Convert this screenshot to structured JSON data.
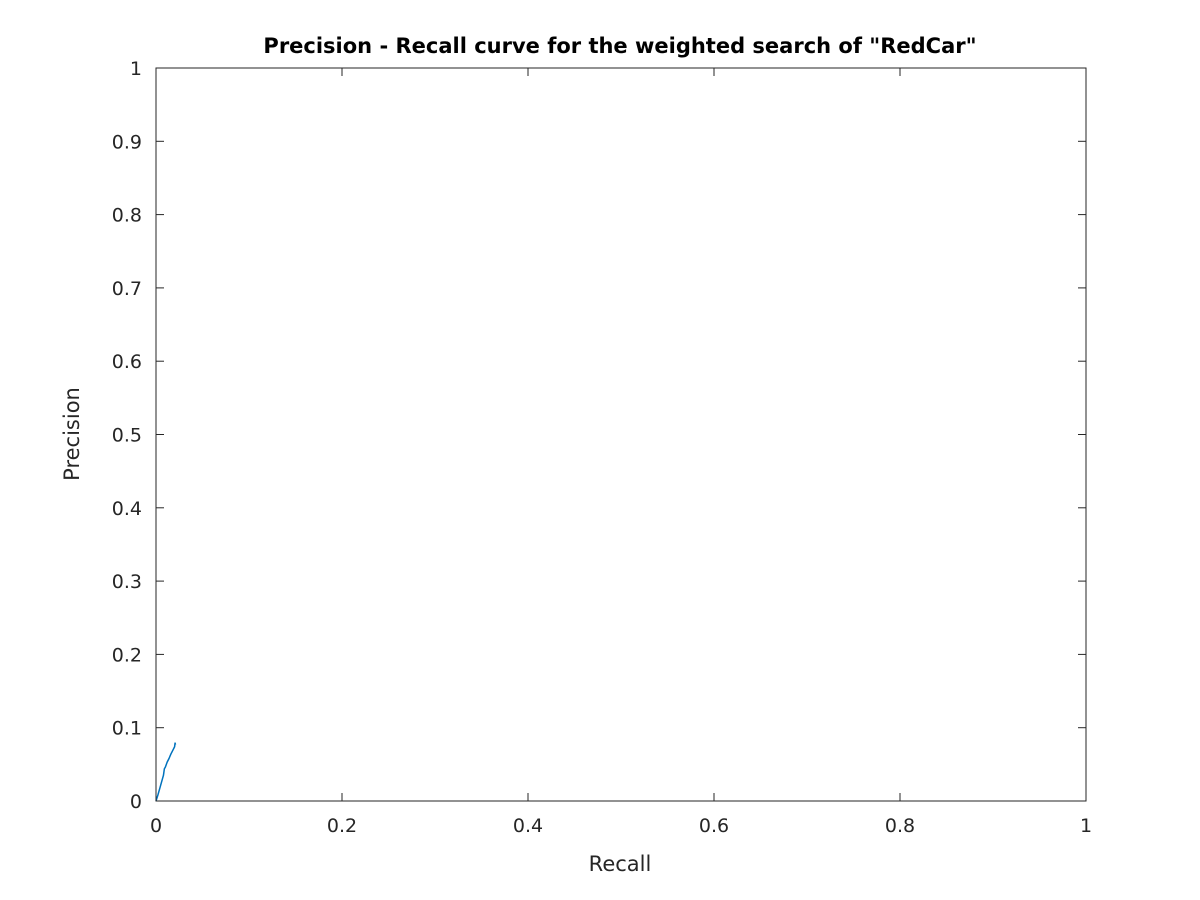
{
  "chart_data": {
    "type": "line",
    "title": "Precision - Recall curve for the weighted search of \"RedCar\"",
    "xlabel": "Recall",
    "ylabel": "Precision",
    "xlim": [
      0,
      1
    ],
    "ylim": [
      0,
      1
    ],
    "x_ticks": [
      "0",
      "0.2",
      "0.4",
      "0.6",
      "0.8",
      "1"
    ],
    "y_ticks": [
      "0",
      "0.1",
      "0.2",
      "0.3",
      "0.4",
      "0.5",
      "0.6",
      "0.7",
      "0.8",
      "0.9",
      "1"
    ],
    "grid": false,
    "box": true,
    "series": [
      {
        "color": "#0072BD",
        "x": [
          0,
          0.002,
          0.004,
          0.006,
          0.008,
          0.009,
          0.01,
          0.012,
          0.014,
          0.016,
          0.018,
          0.02,
          0.0205,
          0.021
        ],
        "y": [
          0,
          0.008,
          0.017,
          0.026,
          0.035,
          0.044,
          0.046,
          0.053,
          0.058,
          0.064,
          0.069,
          0.074,
          0.079,
          0.077
        ]
      }
    ]
  }
}
